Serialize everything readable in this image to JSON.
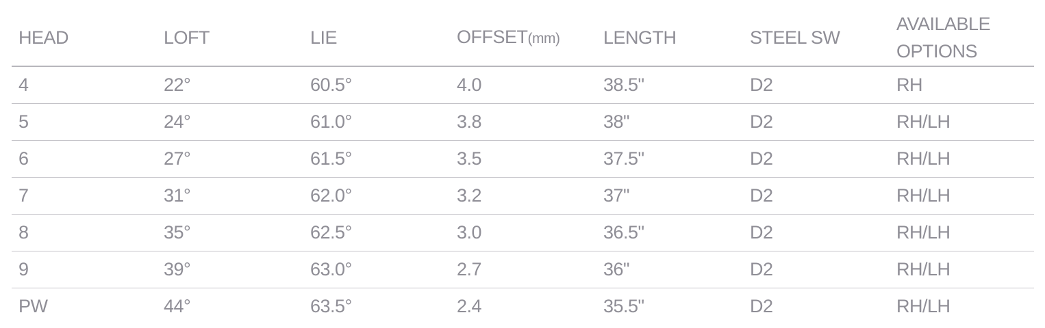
{
  "table": {
    "headers": {
      "head": "HEAD",
      "loft": "LOFT",
      "lie": "LIE",
      "offset": "OFFSET",
      "offset_unit": "(mm)",
      "length": "LENGTH",
      "steel_sw": "STEEL SW",
      "available_options_line1": "AVAILABLE",
      "available_options_line2": "OPTIONS"
    },
    "rows": [
      {
        "head": "4",
        "loft": "22°",
        "lie": "60.5°",
        "offset": "4.0",
        "length": "38.5\"",
        "steel_sw": "D2",
        "options": "RH"
      },
      {
        "head": "5",
        "loft": "24°",
        "lie": "61.0°",
        "offset": "3.8",
        "length": "38\"",
        "steel_sw": "D2",
        "options": "RH/LH"
      },
      {
        "head": "6",
        "loft": "27°",
        "lie": "61.5°",
        "offset": "3.5",
        "length": "37.5\"",
        "steel_sw": "D2",
        "options": "RH/LH"
      },
      {
        "head": "7",
        "loft": "31°",
        "lie": "62.0°",
        "offset": "3.2",
        "length": "37\"",
        "steel_sw": "D2",
        "options": "RH/LH"
      },
      {
        "head": "8",
        "loft": "35°",
        "lie": "62.5°",
        "offset": "3.0",
        "length": "36.5\"",
        "steel_sw": "D2",
        "options": "RH/LH"
      },
      {
        "head": "9",
        "loft": "39°",
        "lie": "63.0°",
        "offset": "2.7",
        "length": "36\"",
        "steel_sw": "D2",
        "options": "RH/LH"
      },
      {
        "head": "PW",
        "loft": "44°",
        "lie": "63.5°",
        "offset": "2.4",
        "length": "35.5\"",
        "steel_sw": "D2",
        "options": "RH/LH"
      }
    ]
  }
}
